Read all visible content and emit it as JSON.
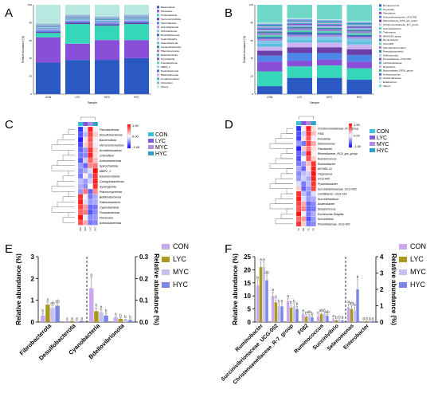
{
  "panels": {
    "A": {
      "label": "A",
      "title": "",
      "ylabel": "Relative Abundance (%)",
      "xlabel": "Sample",
      "categories": [
        "CON",
        "LYC",
        "MYC",
        "HYC"
      ],
      "legend": [
        "Bacteroidota",
        "Firmicutes",
        "Proteobacteria",
        "Verrucomicrobiota",
        "Spirochaetota",
        "Actinobacteriota",
        "Fibrobacterota",
        "Desulfobacterota",
        "Cyanobacteria",
        "Patescibacteria",
        "Campylobacterota",
        "Planctomycetota",
        "Elusimicrobiota",
        "Synergistota",
        "Fusobacteriota",
        "MBP2_2",
        "Deferribacterota",
        "Bdellovibrionota",
        "Armatimonadota",
        "Chloroflexi",
        "Others"
      ],
      "colors": [
        "#2b59c3",
        "#8a4fd8",
        "#36d6b8",
        "#6a3fa8",
        "#4d86e6",
        "#b08ae0",
        "#7fc7e8",
        "#3c6db8",
        "#c9b4f0",
        "#5bc0de",
        "#2e8b9a",
        "#9c7ad8",
        "#45a8c8",
        "#7a5bc4",
        "#58d0ad",
        "#a7c7f0",
        "#4a6fd0",
        "#d0a8f0",
        "#3eb8a0",
        "#8ab0e8",
        "#b8e8e0"
      ]
    },
    "B": {
      "label": "B",
      "ylabel": "Relative Abundance (%)",
      "xlabel": "Sample",
      "categories": [
        "CON",
        "LYC",
        "MYC",
        "HYC"
      ],
      "legend": [
        "Ruminococcus",
        "Prevotella",
        "Fibrobacter",
        "Succinivibrionaceae_UCG-002",
        "Rikenellaceae_RC9_gut_group",
        "Christensenellaceae_R-7_group",
        "Succiniclasticum",
        "Treponema",
        "NK4A214_group",
        "Ruminobacter",
        "UCG-005",
        "Saccharofermentans",
        "Pseudobutyrivibrio",
        "Selenomonas",
        "Prevotellaceae_UCG-001",
        "Lachnospiraceae",
        "Butyrivibrio",
        "Bacteroidales_RF16_group",
        "Acetitomaculum",
        "Oscillospiraceae",
        "Eubacterium",
        "Others"
      ],
      "colors": [
        "#2b59c3",
        "#36d6b8",
        "#8a4fd8",
        "#4d86e6",
        "#6a3fa8",
        "#c9b4f0",
        "#5bc0de",
        "#7fc7e8",
        "#b08ae0",
        "#3c6db8",
        "#58d0ad",
        "#9c7ad8",
        "#2e8b9a",
        "#a7c7f0",
        "#7a5bc4",
        "#45a8c8",
        "#d0a8f0",
        "#3eb8a0",
        "#4a6fd0",
        "#8ab0e8",
        "#b8e8e0",
        "#6fd8c8"
      ]
    },
    "C": {
      "label": "C",
      "scale_max": "1.50",
      "scale_mid": "0.00",
      "scale_min": "-1.50",
      "groups": [
        "CON",
        "LYC",
        "MYC",
        "HYC"
      ],
      "group_colors": [
        "#39c2d7",
        "#7b5cd6",
        "#b08ae0",
        "#2e9fc5"
      ],
      "rows": [
        "Fibrobacterota",
        "Desulfobacterota",
        "Bacteroidota",
        "Verrucomicrobiota",
        "Armatimonadota",
        "Chloroflexi",
        "Actinobacteriota",
        "Spirochaetota",
        "MBP2_2",
        "Elusimicrobiota",
        "Campylobacterota",
        "Synergistota",
        "Planctomycetota",
        "Bdellovibrionota",
        "Patescibacteria",
        "Cyanobacteria",
        "Fusobacteriota",
        "Firmicutes",
        "Actinobacteriota"
      ],
      "columns": [
        "MYC",
        "CON",
        "LYC",
        "HYC"
      ],
      "values": [
        [
          -1.2,
          -0.2,
          1.3,
          0.1
        ],
        [
          -1.0,
          -0.4,
          1.1,
          0.3
        ],
        [
          -1.3,
          0.2,
          1.0,
          0.1
        ],
        [
          -1.1,
          0.3,
          0.9,
          -0.1
        ],
        [
          -0.9,
          -0.6,
          1.2,
          0.3
        ],
        [
          -0.8,
          -0.7,
          1.3,
          0.2
        ],
        [
          -1.0,
          -0.3,
          0.9,
          0.4
        ],
        [
          -0.6,
          -0.9,
          0.7,
          0.8
        ],
        [
          -0.7,
          -0.5,
          -0.2,
          1.4
        ],
        [
          -0.8,
          0.1,
          -0.5,
          1.2
        ],
        [
          -0.4,
          -0.6,
          -0.3,
          1.3
        ],
        [
          -0.5,
          -0.7,
          0.0,
          1.2
        ],
        [
          -0.6,
          0.8,
          -0.9,
          0.7
        ],
        [
          1.2,
          0.1,
          -0.8,
          -0.5
        ],
        [
          1.3,
          -0.2,
          -0.6,
          -0.5
        ],
        [
          1.1,
          0.6,
          -0.9,
          -0.8
        ],
        [
          0.9,
          0.8,
          -1.0,
          -0.7
        ],
        [
          1.4,
          -0.1,
          -0.7,
          -0.6
        ],
        [
          1.0,
          0.5,
          -0.8,
          -0.7
        ]
      ]
    },
    "D": {
      "label": "D",
      "scale_max": "1.50",
      "scale_mid": "0.00",
      "scale_min": "-1.50",
      "groups": [
        "CON",
        "LYC",
        "MYC",
        "HYC"
      ],
      "group_colors": [
        "#39c2d7",
        "#7b5cd6",
        "#b08ae0",
        "#2e9fc5"
      ],
      "rows": [
        "Christensenellaceae_R-7_group",
        "F082",
        "Prevotella",
        "Selenomonas",
        "Fibrobacter",
        "Rikenellaceae_RC9_gut_group",
        "Ruminococcus",
        "Ruminobacter",
        "WCHB1-41",
        "Treponema",
        "UCG-005",
        "Pyramidobacter",
        "Succinivibrionaceae_UCG-002",
        "Oscillibacter_UCG-014",
        "Succiniclasticum",
        "Anaerobacter",
        "Streptococcus",
        "Escherichia-Shigella",
        "Succinivibrio",
        "Prevotellaceae_UCG-001"
      ],
      "columns": [
        "MYC",
        "CON",
        "LYC",
        "HYC"
      ],
      "values": [
        [
          -1.2,
          0.1,
          1.3,
          0.2
        ],
        [
          -1.0,
          -0.3,
          1.2,
          0.4
        ],
        [
          -1.1,
          0.2,
          1.0,
          -0.1
        ],
        [
          -0.6,
          -0.8,
          1.1,
          0.5
        ],
        [
          -1.3,
          0.3,
          0.8,
          0.2
        ],
        [
          -0.9,
          -0.5,
          1.3,
          0.1
        ],
        [
          -1.0,
          0.0,
          1.0,
          0.3
        ],
        [
          -0.8,
          -0.6,
          0.4,
          1.2
        ],
        [
          -0.5,
          -0.9,
          0.2,
          1.3
        ],
        [
          -0.7,
          -0.4,
          -0.3,
          1.4
        ],
        [
          -0.6,
          -0.3,
          -0.5,
          1.3
        ],
        [
          -0.2,
          -0.8,
          -0.4,
          1.2
        ],
        [
          0.3,
          -0.9,
          -0.6,
          1.1
        ],
        [
          1.2,
          -0.4,
          -0.7,
          -0.2
        ],
        [
          1.3,
          -0.2,
          -0.6,
          -0.5
        ],
        [
          1.1,
          0.5,
          -0.9,
          -0.7
        ],
        [
          1.0,
          0.7,
          -0.9,
          -0.8
        ],
        [
          1.4,
          -0.1,
          -0.8,
          -0.5
        ],
        [
          0.9,
          0.6,
          -1.0,
          -0.6
        ],
        [
          1.2,
          0.3,
          -0.8,
          -0.7
        ]
      ]
    },
    "E": {
      "label": "E",
      "type": "bar",
      "ylabel_left": "Relative abundance (%)",
      "ylabel_right": "Relative abundance (%)",
      "ylim_left": [
        0,
        3
      ],
      "ylim_right": [
        0,
        0.3
      ],
      "ticks_left": [
        "0",
        "1",
        "2",
        "3"
      ],
      "ticks_right": [
        "0.0",
        "0.1",
        "0.2",
        "0.3"
      ],
      "categories": [
        "Fibrobacterota",
        "Desulfobacterota",
        "Cyanobacteria",
        "Bdellovibrionota"
      ],
      "split_after": 2,
      "series": [
        {
          "name": "CON",
          "color": "#c9a8f0",
          "values": [
            0.3,
            0.03,
            0.155,
            0.02
          ],
          "errors": [
            0.1,
            0.01,
            0.05,
            0.005
          ],
          "letters": [
            "b",
            "a",
            "a",
            "a"
          ]
        },
        {
          "name": "LYC",
          "color": "#a99a1e",
          "values": [
            0.8,
            0.04,
            0.05,
            0.015
          ],
          "errors": [
            0.12,
            0.01,
            0.015,
            0.004
          ],
          "letters": [
            "a",
            "a",
            "b",
            "b"
          ]
        },
        {
          "name": "MYC",
          "color": "#c8c0ec",
          "values": [
            0.65,
            0.04,
            0.045,
            0.01
          ],
          "errors": [
            0.1,
            0.01,
            0.012,
            0.003
          ],
          "letters": [
            "ab",
            "a",
            "b",
            "b"
          ]
        },
        {
          "name": "HYC",
          "color": "#7a86e6",
          "values": [
            0.75,
            0.045,
            0.03,
            0.008
          ],
          "errors": [
            0.1,
            0.012,
            0.01,
            0.003
          ],
          "letters": [
            "ab",
            "a",
            "b",
            "b"
          ]
        }
      ]
    },
    "F": {
      "label": "F",
      "type": "bar",
      "ylabel_left": "Relative abundance (%)",
      "ylabel_right": "Relative abundance (%)",
      "ylim_left": [
        0,
        25
      ],
      "ylim_right": [
        0,
        4
      ],
      "ticks_left": [
        "0",
        "5",
        "10",
        "15",
        "20",
        "25"
      ],
      "ticks_right": [
        "0",
        "1",
        "2",
        "3",
        "4"
      ],
      "categories": [
        "Ruminobacter",
        "Succinivibrionaceae_UCG-002",
        "Christensenellaceae_R-7_group",
        "F082",
        "Ruminococcus",
        "Succinivibrio",
        "Selenomonas",
        "Enterobacter"
      ],
      "split_after": 6,
      "series": [
        {
          "name": "CON",
          "color": "#c9a8f0",
          "values": [
            14,
            10,
            8,
            3,
            2,
            1,
            0.9,
            0.05
          ],
          "errors": [
            2,
            1.5,
            1,
            0.5,
            0.4,
            0.3,
            0.2,
            0.02
          ],
          "letters": [
            "b",
            "a",
            "a",
            "a",
            "b",
            "a",
            "a",
            "a"
          ]
        },
        {
          "name": "LYC",
          "color": "#a99a1e",
          "values": [
            21,
            7.5,
            5.5,
            2,
            3,
            0.6,
            0.8,
            0.05
          ],
          "errors": [
            2,
            1,
            1,
            0.4,
            0.5,
            0.2,
            0.2,
            0.02
          ],
          "letters": [
            "a",
            "b",
            "b",
            "b",
            "ab",
            "b",
            "ab",
            "a"
          ]
        },
        {
          "name": "MYC",
          "color": "#c8c0ec",
          "values": [
            21,
            6,
            6,
            2.5,
            3.2,
            0.7,
            0.7,
            0.06
          ],
          "errors": [
            2,
            1,
            1,
            0.4,
            0.5,
            0.2,
            0.2,
            0.02
          ],
          "letters": [
            "a",
            "b",
            "b",
            "ab",
            "a",
            "b",
            "b",
            "a"
          ]
        },
        {
          "name": "HYC",
          "color": "#7a86e6",
          "values": [
            16,
            6,
            5,
            1.8,
            2.4,
            0.5,
            2,
            0.06
          ],
          "errors": [
            2,
            1,
            1,
            0.4,
            0.5,
            0.2,
            0.6,
            0.02
          ],
          "letters": [
            "ab",
            "b",
            "b",
            "b",
            "ab",
            "b",
            "b",
            "a"
          ]
        }
      ]
    }
  }
}
